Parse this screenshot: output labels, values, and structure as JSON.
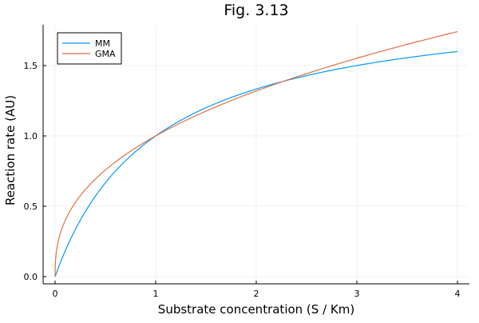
{
  "chart_data": {
    "type": "line",
    "title": "Fig. 3.13",
    "xlabel": "Substrate concentration (S / Km)",
    "ylabel": "Reaction rate (AU)",
    "xlim": [
      -0.1,
      4.12
    ],
    "ylim": [
      -0.05,
      1.79
    ],
    "xticks": [
      0,
      1,
      2,
      3,
      4
    ],
    "xtick_labels": [
      "0",
      "1",
      "2",
      "3",
      "4"
    ],
    "yticks": [
      0.0,
      0.5,
      1.0,
      1.5
    ],
    "ytick_labels": [
      "0.0",
      "0.5",
      "1.0",
      "1.5"
    ],
    "grid": true,
    "legend_position": "top-left",
    "x": [
      0,
      0.05,
      0.1,
      0.2,
      0.3,
      0.4,
      0.5,
      0.75,
      1.0,
      1.5,
      2.0,
      2.5,
      3.0,
      3.5,
      4.0
    ],
    "series": [
      {
        "name": "MM",
        "color": "#009af9",
        "formula": "2S/(1+S)",
        "values": [
          0,
          0.095,
          0.182,
          0.333,
          0.462,
          0.571,
          0.667,
          0.857,
          1.0,
          1.2,
          1.333,
          1.429,
          1.5,
          1.556,
          1.6
        ]
      },
      {
        "name": "GMA",
        "color": "#e26f46",
        "formula": "S^0.4",
        "values": [
          0,
          0.302,
          0.398,
          0.525,
          0.618,
          0.693,
          0.758,
          0.891,
          1.0,
          1.176,
          1.32,
          1.443,
          1.552,
          1.65,
          1.741
        ]
      }
    ]
  }
}
